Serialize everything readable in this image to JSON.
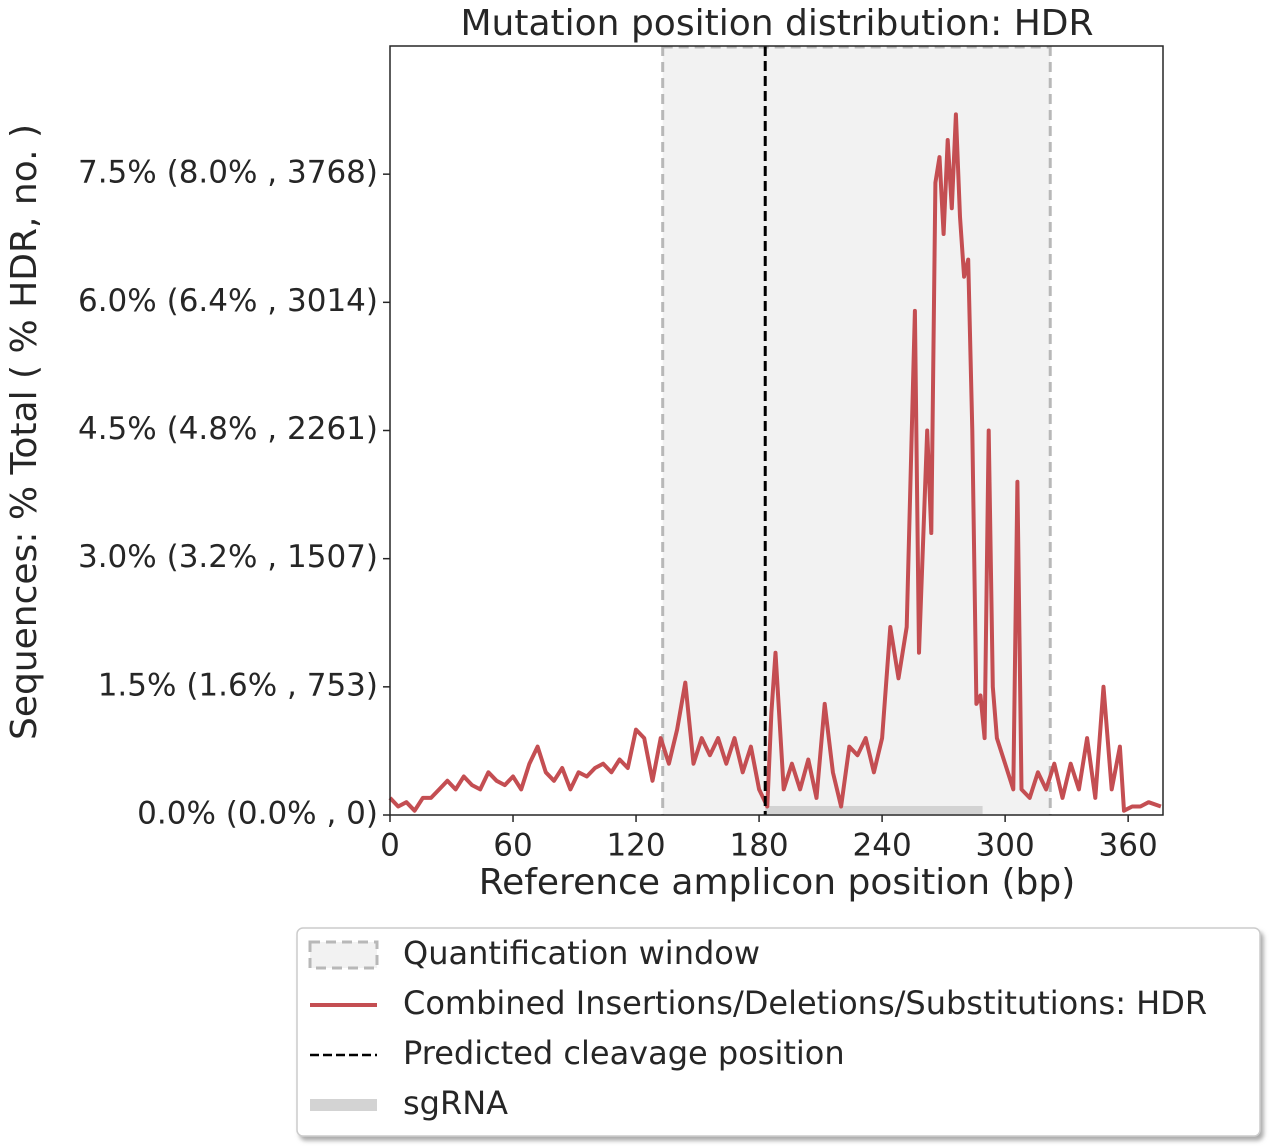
{
  "chart_data": {
    "type": "line",
    "title": "Mutation position distribution: HDR",
    "x_label": "Reference amplicon position (bp)",
    "y_label": "Sequences: % Total ( % HDR, no. )",
    "xlim": [
      0,
      377
    ],
    "ylim": [
      0,
      9.0
    ],
    "xticks": [
      0,
      60,
      120,
      180,
      240,
      300,
      360
    ],
    "yticks": [
      {
        "value": 0,
        "label": "0.0% (0.0% , 0)"
      },
      {
        "value": 1.5,
        "label": "1.5% (1.6% , 753)"
      },
      {
        "value": 3.0,
        "label": "3.0% (3.2% , 1507)"
      },
      {
        "value": 4.5,
        "label": "4.5% (4.8% , 2261)"
      },
      {
        "value": 6.0,
        "label": "6.0% (6.4% , 3014)"
      },
      {
        "value": 7.5,
        "label": "7.5% (8.0% , 3768)"
      }
    ],
    "quantification_window": {
      "label": "Quantification window",
      "start": 133,
      "end": 322,
      "color": "#f2f2f2"
    },
    "cleavage": {
      "label": "Predicted cleavage position",
      "x": 183,
      "color": "#000000"
    },
    "sgrna": {
      "label": "sgRNA",
      "start": 183,
      "end": 289,
      "color": "#d3d3d3"
    },
    "series": [
      {
        "name": "Combined Insertions/Deletions/Substitutions: HDR",
        "color": "#c44e52",
        "x": [
          0,
          4,
          8,
          12,
          16,
          20,
          24,
          28,
          32,
          36,
          40,
          44,
          48,
          52,
          56,
          60,
          64,
          68,
          72,
          76,
          80,
          84,
          88,
          92,
          96,
          100,
          104,
          108,
          112,
          116,
          120,
          124,
          128,
          132,
          136,
          140,
          144,
          148,
          152,
          156,
          160,
          164,
          168,
          172,
          176,
          180,
          184,
          186,
          188,
          192,
          196,
          200,
          204,
          208,
          212,
          216,
          220,
          224,
          228,
          232,
          236,
          240,
          244,
          248,
          252,
          256,
          258,
          262,
          264,
          266,
          268,
          270,
          272,
          274,
          276,
          278,
          280,
          282,
          284,
          286,
          288,
          290,
          292,
          294,
          296,
          300,
          304,
          306,
          308,
          312,
          316,
          320,
          324,
          328,
          332,
          336,
          340,
          344,
          348,
          352,
          356,
          358,
          362,
          366,
          370,
          376
        ],
        "values": [
          0.2,
          0.1,
          0.15,
          0.05,
          0.2,
          0.2,
          0.3,
          0.4,
          0.3,
          0.45,
          0.35,
          0.3,
          0.5,
          0.4,
          0.35,
          0.45,
          0.3,
          0.6,
          0.8,
          0.5,
          0.4,
          0.55,
          0.3,
          0.5,
          0.45,
          0.55,
          0.6,
          0.5,
          0.65,
          0.55,
          1.0,
          0.9,
          0.4,
          0.9,
          0.6,
          1.0,
          1.55,
          0.6,
          0.9,
          0.7,
          0.9,
          0.6,
          0.9,
          0.5,
          0.8,
          0.3,
          0.1,
          1.2,
          1.9,
          0.3,
          0.6,
          0.3,
          0.65,
          0.2,
          1.3,
          0.5,
          0.1,
          0.8,
          0.7,
          0.9,
          0.5,
          0.9,
          2.2,
          1.6,
          2.2,
          5.9,
          1.9,
          4.5,
          3.3,
          7.4,
          7.7,
          6.8,
          7.9,
          7.1,
          8.2,
          7.0,
          6.3,
          6.5,
          4.5,
          1.3,
          1.4,
          0.9,
          4.5,
          1.5,
          0.9,
          0.6,
          0.3,
          3.9,
          0.3,
          0.2,
          0.5,
          0.3,
          0.6,
          0.2,
          0.6,
          0.3,
          0.9,
          0.2,
          1.5,
          0.3,
          0.8,
          0.05,
          0.1,
          0.1,
          0.15,
          0.1
        ]
      }
    ]
  }
}
